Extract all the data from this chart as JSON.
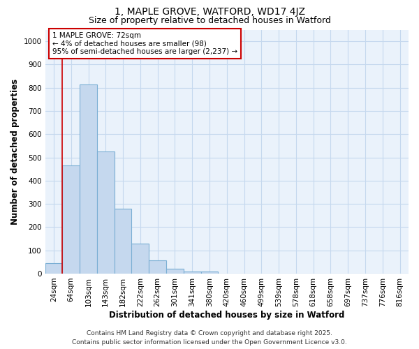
{
  "title": "1, MAPLE GROVE, WATFORD, WD17 4JZ",
  "subtitle": "Size of property relative to detached houses in Watford",
  "xlabel": "Distribution of detached houses by size in Watford",
  "ylabel": "Number of detached properties",
  "categories": [
    "24sqm",
    "64sqm",
    "103sqm",
    "143sqm",
    "182sqm",
    "222sqm",
    "262sqm",
    "301sqm",
    "341sqm",
    "380sqm",
    "420sqm",
    "460sqm",
    "499sqm",
    "539sqm",
    "578sqm",
    "618sqm",
    "658sqm",
    "697sqm",
    "737sqm",
    "776sqm",
    "816sqm"
  ],
  "values": [
    45,
    465,
    815,
    525,
    278,
    128,
    57,
    22,
    10,
    8,
    0,
    0,
    0,
    0,
    0,
    0,
    0,
    0,
    0,
    0,
    0
  ],
  "bar_color": "#c5d8ee",
  "bar_edge_color": "#7bafd4",
  "ylim": [
    0,
    1050
  ],
  "yticks": [
    0,
    100,
    200,
    300,
    400,
    500,
    600,
    700,
    800,
    900,
    1000
  ],
  "red_line_index": 1,
  "annotation_text": "1 MAPLE GROVE: 72sqm\n← 4% of detached houses are smaller (98)\n95% of semi-detached houses are larger (2,237) →",
  "annotation_box_color": "#ffffff",
  "annotation_border_color": "#cc0000",
  "footer_line1": "Contains HM Land Registry data © Crown copyright and database right 2025.",
  "footer_line2": "Contains public sector information licensed under the Open Government Licence v3.0.",
  "background_color": "#ffffff",
  "plot_bg_color": "#eaf2fb",
  "grid_color": "#c5d8ee",
  "title_fontsize": 10,
  "subtitle_fontsize": 9,
  "axis_label_fontsize": 8.5,
  "tick_fontsize": 7.5,
  "annotation_fontsize": 7.5,
  "footer_fontsize": 6.5
}
